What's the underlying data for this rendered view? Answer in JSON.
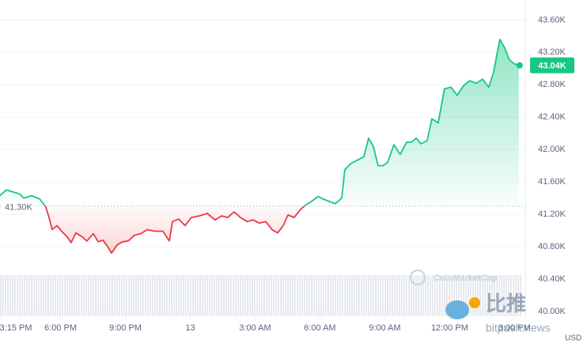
{
  "chart_data": {
    "type": "line",
    "x": [
      15.2,
      15.49,
      15.75,
      16.11,
      16.3,
      16.66,
      17.03,
      17.32,
      17.47,
      17.61,
      17.83,
      18.05,
      18.31,
      18.49,
      18.71,
      19.01,
      19.22,
      19.52,
      19.74,
      19.96,
      20.18,
      20.36,
      20.62,
      20.87,
      21.13,
      21.42,
      21.71,
      22.01,
      22.37,
      22.74,
      23.03,
      23.18,
      23.47,
      23.76,
      24.05,
      24.42,
      24.79,
      25.15,
      25.45,
      25.74,
      26.03,
      26.32,
      26.62,
      26.91,
      27.2,
      27.49,
      27.79,
      28.04,
      28.3,
      28.52,
      28.81,
      29.1,
      29.32,
      29.62,
      29.91,
      30.13,
      30.42,
      30.71,
      31.01,
      31.15,
      31.45,
      31.74,
      32.03,
      32.25,
      32.47,
      32.69,
      32.91,
      33.13,
      33.42,
      33.71,
      34.01,
      34.23,
      34.45,
      34.67,
      34.96,
      35.18,
      35.47,
      35.76,
      36.06,
      36.35,
      36.64,
      36.93,
      37.23,
      37.52,
      37.81,
      38.03,
      38.32,
      38.54,
      38.76,
      38.98,
      39.2
    ],
    "values": [
      41430,
      41500,
      41480,
      41450,
      41400,
      41430,
      41390,
      41290,
      41160,
      41010,
      41060,
      40990,
      40920,
      40850,
      40970,
      40920,
      40870,
      40960,
      40860,
      40880,
      40800,
      40720,
      40820,
      40860,
      40870,
      40940,
      40960,
      41010,
      40990,
      40990,
      40870,
      41110,
      41140,
      41060,
      41160,
      41180,
      41210,
      41130,
      41180,
      41160,
      41230,
      41160,
      41110,
      41130,
      41090,
      41110,
      41010,
      40970,
      41060,
      41190,
      41160,
      41260,
      41310,
      41360,
      41420,
      41390,
      41360,
      41330,
      41400,
      41750,
      41830,
      41870,
      41910,
      42140,
      42040,
      41800,
      41800,
      41840,
      42060,
      41940,
      42090,
      42090,
      42140,
      42070,
      42110,
      42380,
      42330,
      42750,
      42770,
      42670,
      42790,
      42850,
      42820,
      42870,
      42770,
      42950,
      43360,
      43260,
      43110,
      43060,
      43040
    ],
    "up_color": "#16c784",
    "down_color": "#ea3943",
    "reference": {
      "value": 41300,
      "label": "41.30K"
    },
    "current": {
      "value": 43040,
      "label": "43.04K"
    },
    "xlim": [
      15.2,
      39.5
    ],
    "xticks": [
      {
        "value": 15.25,
        "label": "3:15 PM"
      },
      {
        "value": 18,
        "label": "6:00 PM"
      },
      {
        "value": 21,
        "label": "9:00 PM"
      },
      {
        "value": 24,
        "label": "13"
      },
      {
        "value": 27,
        "label": "3:00 AM"
      },
      {
        "value": 30,
        "label": "6:00 AM"
      },
      {
        "value": 33,
        "label": "9:00 AM"
      },
      {
        "value": 36,
        "label": "12:00 PM"
      },
      {
        "value": 39,
        "label": "3:00 PM"
      }
    ],
    "ylim": [
      39940,
      43750
    ],
    "yticks": [
      {
        "value": 40000,
        "label": "40.00K"
      },
      {
        "value": 40400,
        "label": "40.40K"
      },
      {
        "value": 40800,
        "label": "40.80K"
      },
      {
        "value": 41200,
        "label": "41.20K"
      },
      {
        "value": 41600,
        "label": "41.60K"
      },
      {
        "value": 42000,
        "label": "42.00K"
      },
      {
        "value": 42400,
        "label": "42.40K"
      },
      {
        "value": 42800,
        "label": "42.80K"
      },
      {
        "value": 43200,
        "label": "43.20K"
      },
      {
        "value": 43600,
        "label": "43.60K"
      }
    ],
    "currency": "USD",
    "grid": true,
    "watermarks": [
      "CoinMarketCap",
      "比推",
      "bitpush.news"
    ]
  }
}
